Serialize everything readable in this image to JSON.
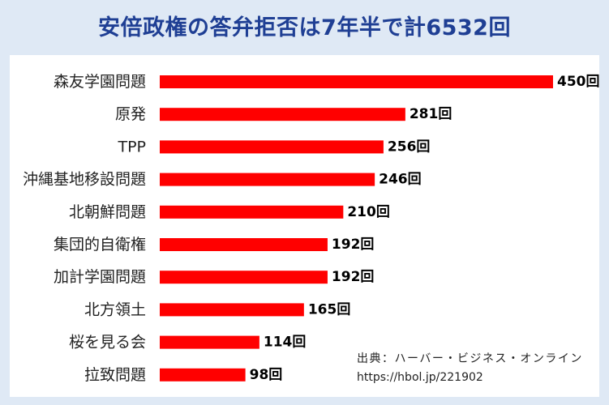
{
  "chart_data": {
    "type": "bar",
    "orientation": "horizontal",
    "title": "安倍政権の答弁拒否は7年半で計6532回",
    "categories": [
      "森友学園問題",
      "原発",
      "TPP",
      "沖縄基地移設問題",
      "北朝鮮問題",
      "集団的自衛権",
      "加計学園問題",
      "北方領土",
      "桜を見る会",
      "拉致問題"
    ],
    "values": [
      450,
      281,
      256,
      246,
      210,
      192,
      192,
      165,
      114,
      98
    ],
    "value_labels": [
      "450回",
      "281回",
      "256回",
      "246回",
      "210回",
      "192回",
      "192回",
      "165回",
      "114回",
      "98回"
    ],
    "xlim": [
      0,
      450
    ],
    "bar_color": "#ff0000",
    "grid": false,
    "legend": "none"
  },
  "source": {
    "line1": "出典：ハーバー・ビジネス・オンライン",
    "line2": "https://hbol.jp/221902"
  },
  "colors": {
    "title": "#1f3f94",
    "background": "#dfe9f5",
    "panel": "#ffffff",
    "bar": "#ff0000"
  }
}
